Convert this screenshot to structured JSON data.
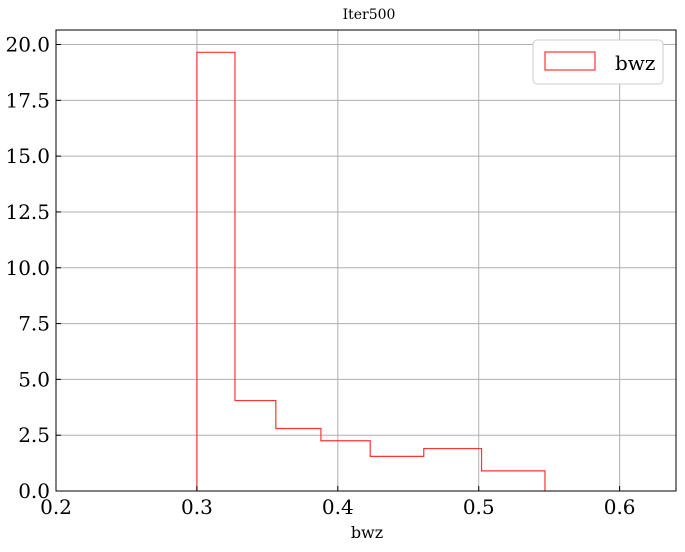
{
  "chart_data": {
    "type": "histogram",
    "title": "Iter500",
    "xlabel": "bwz",
    "ylabel": "",
    "xlim": [
      0.2,
      0.64
    ],
    "ylim": [
      0.0,
      20.65
    ],
    "xticks": [
      0.2,
      0.3,
      0.4,
      0.5,
      0.6
    ],
    "xtick_labels": [
      "0.2",
      "0.3",
      "0.4",
      "0.5",
      "0.6"
    ],
    "yticks": [
      0.0,
      2.5,
      5.0,
      7.5,
      10.0,
      12.5,
      15.0,
      17.5,
      20.0
    ],
    "ytick_labels": [
      "0.0",
      "2.5",
      "5.0",
      "7.5",
      "10.0",
      "12.5",
      "15.0",
      "17.5",
      "20.0"
    ],
    "grid": true,
    "legend_position": "top-right",
    "series": [
      {
        "name": "bwz",
        "color": "#ff3333",
        "histtype": "step",
        "bin_edges": [
          0.3,
          0.327,
          0.356,
          0.388,
          0.423,
          0.461,
          0.502,
          0.547
        ],
        "values": [
          19.65,
          4.05,
          2.8,
          2.25,
          1.55,
          1.9,
          0.9
        ]
      }
    ]
  }
}
